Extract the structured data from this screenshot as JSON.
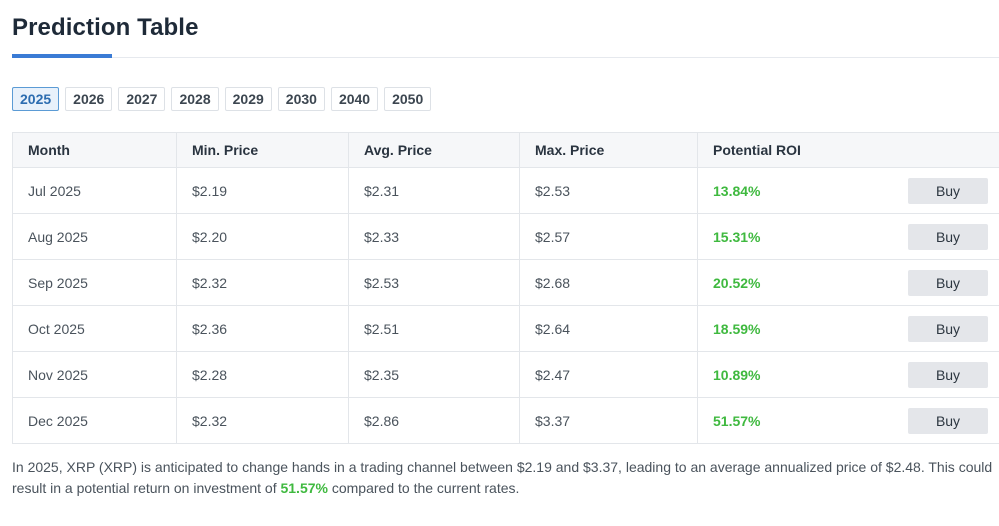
{
  "header": {
    "title": "Prediction Table"
  },
  "year_tabs": {
    "active": "2025",
    "items": [
      "2025",
      "2026",
      "2027",
      "2028",
      "2029",
      "2030",
      "2040",
      "2050"
    ]
  },
  "table": {
    "columns": [
      "Month",
      "Min. Price",
      "Avg. Price",
      "Max. Price",
      "Potential ROI"
    ],
    "buy_label": "Buy",
    "rows": [
      {
        "month": "Jul 2025",
        "min": "$2.19",
        "avg": "$2.31",
        "max": "$2.53",
        "roi": "13.84%"
      },
      {
        "month": "Aug 2025",
        "min": "$2.20",
        "avg": "$2.33",
        "max": "$2.57",
        "roi": "15.31%"
      },
      {
        "month": "Sep 2025",
        "min": "$2.32",
        "avg": "$2.53",
        "max": "$2.68",
        "roi": "20.52%"
      },
      {
        "month": "Oct 2025",
        "min": "$2.36",
        "avg": "$2.51",
        "max": "$2.64",
        "roi": "18.59%"
      },
      {
        "month": "Nov 2025",
        "min": "$2.28",
        "avg": "$2.35",
        "max": "$2.47",
        "roi": "10.89%"
      },
      {
        "month": "Dec 2025",
        "min": "$2.32",
        "avg": "$2.86",
        "max": "$3.37",
        "roi": "51.57%"
      }
    ]
  },
  "summary": {
    "text_before": "In 2025, XRP (XRP) is anticipated to change hands in a trading channel between $2.19 and $3.37, leading to an average annualized price of $2.48. This could result in a potential return on investment of ",
    "roi": "51.57%",
    "text_after": " compared to the current rates."
  },
  "colors": {
    "accent": "#3a7bd5",
    "positive": "#3fb93f",
    "button_bg": "#e4e6ea"
  }
}
